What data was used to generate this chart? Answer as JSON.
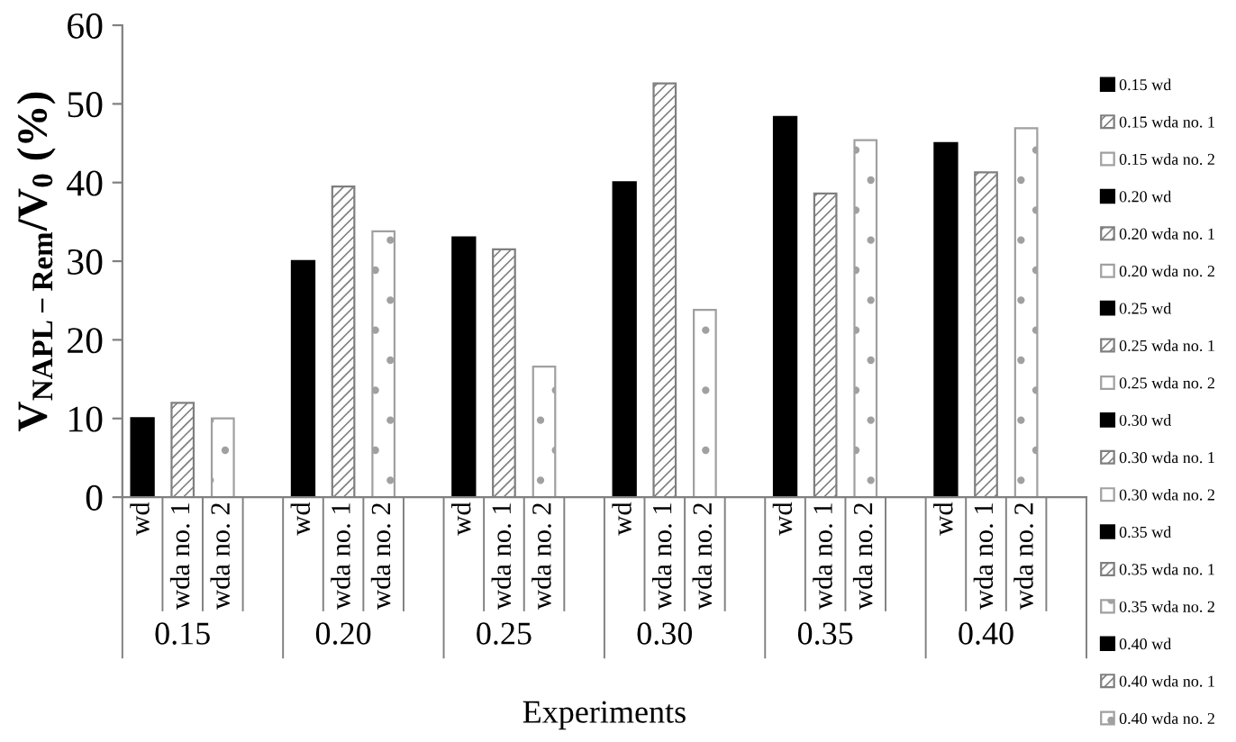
{
  "chart_data": {
    "type": "bar",
    "ylabel": "V$_{NAPL−Rem}$/V$_{0}$ (%)",
    "xlabel": "Experiments",
    "categories": [
      "wd",
      "wda no. 1",
      "wda no. 2",
      null,
      "wd",
      "wda no. 1",
      "wda no. 2",
      null,
      "wd",
      "wda no. 1",
      "wda no. 2",
      null,
      "wd",
      "wda no. 1",
      "wda no. 2",
      null,
      "wd",
      "wda no. 1",
      "wda no. 2",
      null,
      "wd",
      "wda no. 1",
      "wda no. 2",
      null
    ],
    "annotations": [
      "0.15",
      "0.20",
      "0.25",
      "0.30",
      "0.35",
      "0.40"
    ],
    "ylim": [
      0,
      60
    ],
    "yticks": [
      0,
      10,
      20,
      30,
      40,
      50,
      60
    ],
    "grid": false,
    "legend": "right",
    "series": [
      {
        "name": "0.15 wd",
        "color": "#000000",
        "values": [
          10,
          null,
          null,
          null,
          null,
          null,
          null,
          null,
          null,
          null,
          null,
          null,
          null,
          null,
          null,
          null,
          null,
          null,
          null,
          null,
          null,
          null,
          null,
          null
        ]
      },
      {
        "name": "0.15 wda no. 1",
        "color": "#7f7f7f",
        "values": [
          null,
          12,
          null,
          null,
          null,
          null,
          null,
          null,
          null,
          null,
          null,
          null,
          null,
          null,
          null,
          null,
          null,
          null,
          null,
          null,
          null,
          null,
          null,
          null
        ]
      },
      {
        "name": "0.15 wda no. 2",
        "color": "#a0a0a0",
        "values": [
          null,
          null,
          10,
          null,
          null,
          null,
          null,
          null,
          null,
          null,
          null,
          null,
          null,
          null,
          null,
          null,
          null,
          null,
          null,
          null,
          null,
          null,
          null,
          null
        ]
      },
      {
        "name": "0.20 wd",
        "color": "#000000",
        "values": [
          null,
          null,
          null,
          null,
          30,
          null,
          null,
          null,
          null,
          null,
          null,
          null,
          null,
          null,
          null,
          null,
          null,
          null,
          null,
          null,
          null,
          null,
          null,
          null
        ]
      },
      {
        "name": "0.20 wda no. 1",
        "color": "#7f7f7f",
        "values": [
          null,
          null,
          null,
          null,
          null,
          39.5,
          null,
          null,
          null,
          null,
          null,
          null,
          null,
          null,
          null,
          null,
          null,
          null,
          null,
          null,
          null,
          null,
          null,
          null
        ]
      },
      {
        "name": "0.20 wda no. 2",
        "color": "#a0a0a0",
        "values": [
          null,
          null,
          null,
          null,
          null,
          null,
          33.8,
          null,
          null,
          null,
          null,
          null,
          null,
          null,
          null,
          null,
          null,
          null,
          null,
          null,
          null,
          null,
          null,
          null
        ]
      },
      {
        "name": "0.25 wd",
        "color": "#000000",
        "values": [
          null,
          null,
          null,
          null,
          null,
          null,
          null,
          null,
          33,
          null,
          null,
          null,
          null,
          null,
          null,
          null,
          null,
          null,
          null,
          null,
          null,
          null,
          null,
          null
        ]
      },
      {
        "name": "0.25 wda no. 1",
        "color": "#7f7f7f",
        "values": [
          null,
          null,
          null,
          null,
          null,
          null,
          null,
          null,
          null,
          31.5,
          null,
          null,
          null,
          null,
          null,
          null,
          null,
          null,
          null,
          null,
          null,
          null,
          null,
          null
        ]
      },
      {
        "name": "0.25 wda no. 2",
        "color": "#a0a0a0",
        "values": [
          null,
          null,
          null,
          null,
          null,
          null,
          null,
          null,
          null,
          null,
          16.6,
          null,
          null,
          null,
          null,
          null,
          null,
          null,
          null,
          null,
          null,
          null,
          null,
          null
        ]
      },
      {
        "name": "0.30 wd",
        "color": "#000000",
        "values": [
          null,
          null,
          null,
          null,
          null,
          null,
          null,
          null,
          null,
          null,
          null,
          null,
          40,
          null,
          null,
          null,
          null,
          null,
          null,
          null,
          null,
          null,
          null,
          null
        ]
      },
      {
        "name": "0.30 wda no. 1",
        "color": "#7f7f7f",
        "values": [
          null,
          null,
          null,
          null,
          null,
          null,
          null,
          null,
          null,
          null,
          null,
          null,
          null,
          52.6,
          null,
          null,
          null,
          null,
          null,
          null,
          null,
          null,
          null,
          null
        ]
      },
      {
        "name": "0.30 wda no. 2",
        "color": "#a0a0a0",
        "values": [
          null,
          null,
          null,
          null,
          null,
          null,
          null,
          null,
          null,
          null,
          null,
          null,
          null,
          null,
          23.8,
          null,
          null,
          null,
          null,
          null,
          null,
          null,
          null,
          null
        ]
      },
      {
        "name": "0.35 wd",
        "color": "#000000",
        "values": [
          null,
          null,
          null,
          null,
          null,
          null,
          null,
          null,
          null,
          null,
          null,
          null,
          null,
          null,
          null,
          null,
          48.3,
          null,
          null,
          null,
          null,
          null,
          null,
          null
        ]
      },
      {
        "name": "0.35 wda no. 1",
        "color": "#7f7f7f",
        "values": [
          null,
          null,
          null,
          null,
          null,
          null,
          null,
          null,
          null,
          null,
          null,
          null,
          null,
          null,
          null,
          null,
          null,
          38.6,
          null,
          null,
          null,
          null,
          null,
          null
        ]
      },
      {
        "name": "0.35 wda no. 2",
        "color": "#a0a0a0",
        "values": [
          null,
          null,
          null,
          null,
          null,
          null,
          null,
          null,
          null,
          null,
          null,
          null,
          null,
          null,
          null,
          null,
          null,
          null,
          45.4,
          null,
          null,
          null,
          null,
          null
        ]
      },
      {
        "name": "0.40 wd",
        "color": "#000000",
        "values": [
          null,
          null,
          null,
          null,
          null,
          null,
          null,
          null,
          null,
          null,
          null,
          null,
          null,
          null,
          null,
          null,
          null,
          null,
          null,
          null,
          45,
          null,
          null,
          null
        ]
      },
      {
        "name": "0.40 wda no. 1",
        "color": "#7f7f7f",
        "values": [
          null,
          null,
          null,
          null,
          null,
          null,
          null,
          null,
          null,
          null,
          null,
          null,
          null,
          null,
          null,
          null,
          null,
          null,
          null,
          null,
          null,
          41.3,
          null,
          null
        ]
      },
      {
        "name": "0.40 wda no. 2",
        "color": "#a0a0a0",
        "values": [
          null,
          null,
          null,
          null,
          null,
          null,
          null,
          null,
          null,
          null,
          null,
          null,
          null,
          null,
          null,
          null,
          null,
          null,
          null,
          null,
          null,
          null,
          46.9,
          null
        ]
      }
    ]
  }
}
